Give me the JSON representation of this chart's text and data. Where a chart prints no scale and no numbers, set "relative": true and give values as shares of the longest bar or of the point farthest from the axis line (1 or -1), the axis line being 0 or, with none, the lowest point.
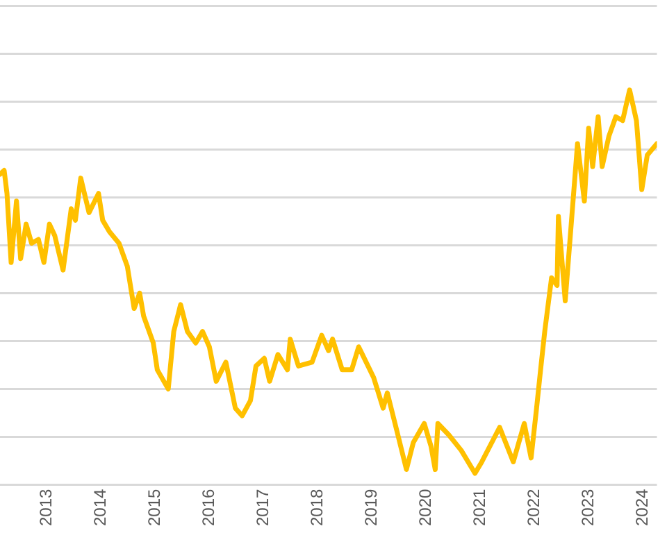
{
  "chart_data": {
    "type": "line",
    "relative": true,
    "grid": "y",
    "legend": false,
    "marker": "none",
    "line_style": "solid",
    "xlim": [
      "2012-02-21",
      "2024-04-05"
    ],
    "xticks": [
      "2013",
      "2014",
      "2015",
      "2016",
      "2017",
      "2018",
      "2019",
      "2020",
      "2021",
      "2022",
      "2023",
      "2024"
    ],
    "x": [
      "2012-02-21",
      "2012-03-20",
      "2012-04-08",
      "2012-05-06",
      "2012-06-11",
      "2012-07-09",
      "2012-08-15",
      "2012-09-21",
      "2012-11-06",
      "2012-12-13",
      "2013-01-19",
      "2013-02-24",
      "2013-04-21",
      "2013-06-15",
      "2013-07-13",
      "2013-08-18",
      "2013-10-13",
      "2013-12-16",
      "2014-01-13",
      "2014-02-28",
      "2014-05-03",
      "2014-06-28",
      "2014-08-13",
      "2014-09-19",
      "2014-10-16",
      "2014-12-20",
      "2015-01-16",
      "2015-03-31",
      "2015-05-07",
      "2015-06-22",
      "2015-08-07",
      "2015-10-02",
      "2015-11-17",
      "2016-01-02",
      "2016-02-17",
      "2016-04-22",
      "2016-06-25",
      "2016-08-10",
      "2016-10-05",
      "2016-11-11",
      "2017-01-06",
      "2017-02-11",
      "2017-04-08",
      "2017-06-11",
      "2017-06-30",
      "2017-08-24",
      "2017-11-24",
      "2018-01-28",
      "2018-03-15",
      "2018-04-11",
      "2018-06-15",
      "2018-08-18",
      "2018-10-04",
      "2019-01-13",
      "2019-03-18",
      "2019-04-15",
      "2019-06-19",
      "2019-08-22",
      "2019-10-07",
      "2019-12-20",
      "2020-02-04",
      "2020-03-03",
      "2020-03-21",
      "2020-06-03",
      "2020-08-25",
      "2020-11-26",
      "2021-01-11",
      "2021-05-11",
      "2021-08-11",
      "2021-10-24",
      "2021-12-09",
      "2022-01-15",
      "2022-02-11",
      "2022-03-11",
      "2022-04-26",
      "2022-06-02",
      "2022-06-11",
      "2022-07-27",
      "2022-10-18",
      "2022-12-03",
      "2023-01-01",
      "2023-01-28",
      "2023-03-06",
      "2023-04-02",
      "2023-05-18",
      "2023-07-03",
      "2023-08-18",
      "2023-10-04",
      "2023-11-19",
      "2023-12-25",
      "2024-01-31",
      "2024-04-05"
    ],
    "series": [
      {
        "color": "#ffc000",
        "values": [
          0.78,
          0.79,
          0.73,
          0.55,
          0.71,
          0.56,
          0.65,
          0.6,
          0.61,
          0.55,
          0.65,
          0.62,
          0.53,
          0.69,
          0.66,
          0.77,
          0.68,
          0.73,
          0.66,
          0.63,
          0.6,
          0.54,
          0.43,
          0.47,
          0.41,
          0.34,
          0.27,
          0.22,
          0.37,
          0.44,
          0.37,
          0.34,
          0.37,
          0.33,
          0.24,
          0.29,
          0.17,
          0.15,
          0.19,
          0.28,
          0.3,
          0.24,
          0.31,
          0.27,
          0.35,
          0.28,
          0.29,
          0.36,
          0.32,
          0.35,
          0.27,
          0.27,
          0.33,
          0.25,
          0.17,
          0.21,
          0.11,
          0.01,
          0.08,
          0.13,
          0.07,
          0.01,
          0.13,
          0.1,
          0.06,
          0,
          0.03,
          0.12,
          0.03,
          0.13,
          0.04,
          0.17,
          0.27,
          0.37,
          0.51,
          0.49,
          0.67,
          0.45,
          0.86,
          0.71,
          0.9,
          0.8,
          0.93,
          0.8,
          0.88,
          0.93,
          0.92,
          1,
          0.92,
          0.74,
          0.83,
          0.86
        ]
      }
    ]
  }
}
